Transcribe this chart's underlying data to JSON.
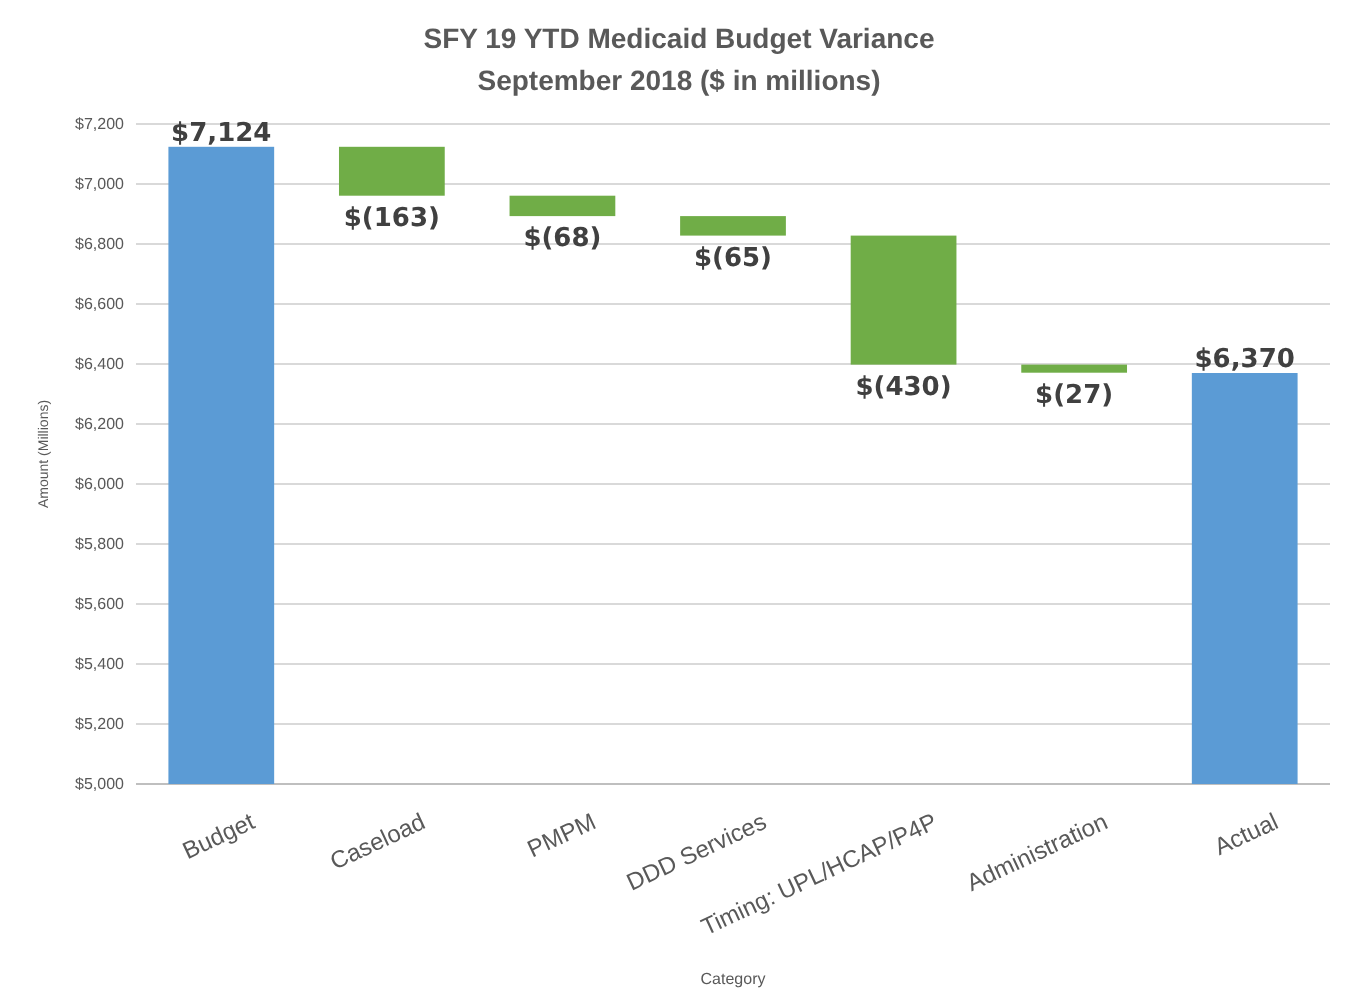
{
  "chart_data": {
    "type": "bar",
    "title": "SFY 19 YTD Medicaid Budget Variance\nSeptember 2018 ($ in millions)",
    "xlabel": "Category",
    "ylabel": "Amount (Millions)",
    "categories": [
      "Budget",
      "Caseload",
      "PMPM",
      "DDD Services",
      "Timing: UPL/HCAP/P4P",
      "Administration",
      "Actual"
    ],
    "values": [
      7124,
      -163,
      -68,
      -65,
      -430,
      -27,
      6370
    ],
    "base": [
      null,
      7124,
      6961,
      6893,
      6828,
      6398,
      null
    ],
    "colors": [
      "#5b9bd5",
      "#70ad47",
      "#70ad47",
      "#70ad47",
      "#70ad47",
      "#70ad47",
      "#5b9bd5"
    ],
    "value_labels": [
      "$7,124",
      "$(163)",
      "$(68)",
      "$(65)",
      "$(430)",
      "$(27)",
      "$6,370"
    ],
    "ylim": [
      5000,
      7200
    ],
    "yticks": [
      {
        "value": 5000,
        "label": "$5,000"
      },
      {
        "value": 5200,
        "label": "$5,200"
      },
      {
        "value": 5400,
        "label": "$5,400"
      },
      {
        "value": 5600,
        "label": "$5,600"
      },
      {
        "value": 5800,
        "label": "$5,800"
      },
      {
        "value": 6000,
        "label": "$6,000"
      },
      {
        "value": 6200,
        "label": "$6,200"
      },
      {
        "value": 6400,
        "label": "$6,400"
      },
      {
        "value": 6600,
        "label": "$6,600"
      },
      {
        "value": 6800,
        "label": "$6,800"
      },
      {
        "value": 7000,
        "label": "$7,000"
      },
      {
        "value": 7200,
        "label": "$7,200"
      }
    ],
    "grid": "y"
  }
}
